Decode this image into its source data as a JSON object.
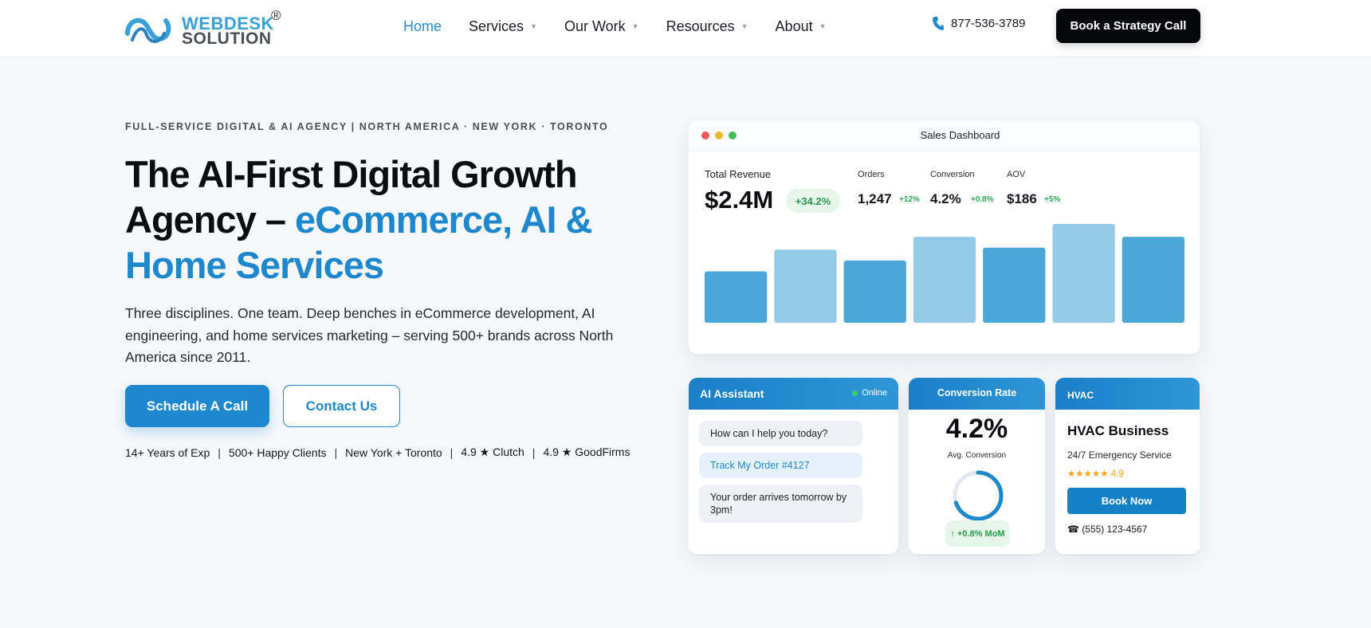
{
  "brand": {
    "logo_line1": "WEBDESK",
    "logo_line2": "SOLUTION",
    "logo_mark": "®"
  },
  "nav": {
    "items": [
      {
        "label": "Home",
        "active": true,
        "has_caret": false
      },
      {
        "label": "Services",
        "active": false,
        "has_caret": true
      },
      {
        "label": "Our Work",
        "active": false,
        "has_caret": true
      },
      {
        "label": "Resources",
        "active": false,
        "has_caret": true
      },
      {
        "label": "About",
        "active": false,
        "has_caret": true
      }
    ]
  },
  "header": {
    "phone": "877-536-3789",
    "cta_label": "Book a Strategy Call"
  },
  "hero": {
    "eyebrow": "FULL-SERVICE DIGITAL & AI AGENCY | NORTH AMERICA · NEW YORK · TORONTO",
    "headline_plain": "The AI-First Digital Growth Agency – ",
    "headline_highlight": "eCommerce, AI & Home Services",
    "lede": "Three disciplines. One team. Deep benches in eCommerce development, AI engineering, and home services marketing – serving 500+ brands across North America since 2011.",
    "primary_cta": "Schedule A Call",
    "secondary_cta": "Contact Us",
    "stats": [
      "14+ Years of Exp",
      "500+ Happy Clients",
      "New York + Toronto",
      "4.9 ★ Clutch",
      "4.9 ★ GoodFirms"
    ],
    "stat_separator": "|"
  },
  "dashboard": {
    "title": "Sales Dashboard",
    "revenue_label": "Total Revenue",
    "revenue_value": "$2.4M",
    "revenue_delta": "+34.2%",
    "kpis": [
      {
        "label": "Orders",
        "value": "1,247",
        "delta": "+12%"
      },
      {
        "label": "Conversion",
        "value": "4.2%",
        "delta": "+0.8%"
      },
      {
        "label": "AOV",
        "value": "$186",
        "delta": "+5%"
      }
    ],
    "bar_levels": [
      0.52,
      0.74,
      0.63,
      0.87,
      0.76,
      1.0,
      0.87
    ],
    "bar_colors": [
      "#4aa7d8",
      "#93cbe9",
      "#4aa7d8",
      "#93cbe9",
      "#4aa7d8",
      "#93cbe9",
      "#4aa7d8"
    ]
  },
  "ai_assistant": {
    "title": "AI Assistant",
    "status": "Online",
    "messages": [
      {
        "text": "How can I help you today?",
        "from": "bot"
      },
      {
        "text": "Track My Order #4127",
        "from": "user"
      },
      {
        "text": "Your order arrives tomorrow by 3pm!",
        "from": "bot"
      }
    ]
  },
  "conversion_card": {
    "title": "Conversion Rate",
    "value": "4.2%",
    "subtitle": "Avg. Conversion",
    "ring_fraction": 0.7,
    "delta": "↑ +0.8% MoM"
  },
  "hvac_card": {
    "tag": "HVAC",
    "title": "HVAC Business",
    "subtitle": "24/7 Emergency Service",
    "stars": "★★★★★",
    "rating": "4.9",
    "button": "Book Now",
    "phone": "☎ (555) 123-4567"
  },
  "colors": {
    "accent": "#1d88cd",
    "success": "#2eab52",
    "dark": "#05070a"
  }
}
